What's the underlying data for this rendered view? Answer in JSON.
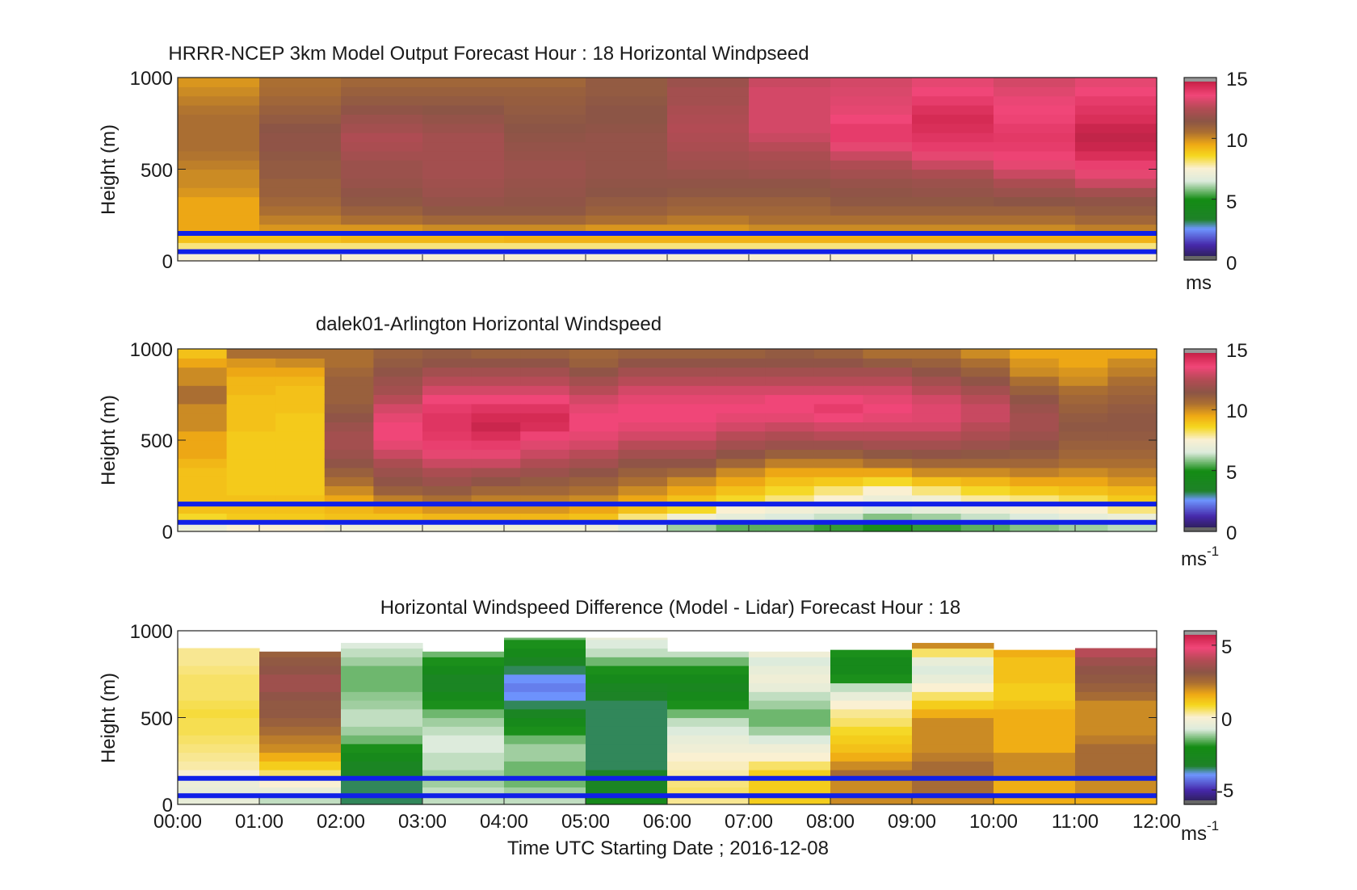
{
  "chart_data": [
    {
      "type": "heatmap",
      "title": "HRRR-NCEP 3km Model Output   Forecast Hour : 18 Horizontal Windpseed",
      "ylabel": "Height (m)",
      "ylim": [
        0,
        1000
      ],
      "yticks": [
        "0",
        "500",
        "1000"
      ],
      "xlim_hours": [
        0,
        12
      ],
      "colorbar": {
        "min": 0,
        "max": 15,
        "ticks": [
          "0",
          "5",
          "10",
          "15"
        ],
        "unit": "ms",
        "unit_sup": ""
      },
      "reference_lines_m": [
        150,
        50
      ],
      "heights_m": [
        25,
        75,
        125,
        175,
        225,
        275,
        325,
        375,
        425,
        475,
        525,
        575,
        625,
        675,
        725,
        775,
        825,
        875,
        925,
        975
      ],
      "columns": [
        [
          7.5,
          8.0,
          9.0,
          9.5,
          9.5,
          9.5,
          9.5,
          9.8,
          10.0,
          10.0,
          10.2,
          10.4,
          10.5,
          10.5,
          10.5,
          10.5,
          10.4,
          10.2,
          10.0,
          9.8
        ],
        [
          7.5,
          8.0,
          9.0,
          9.8,
          10.2,
          10.5,
          10.8,
          11.0,
          11.0,
          11.2,
          11.2,
          11.3,
          11.5,
          11.5,
          11.4,
          11.2,
          11.0,
          10.8,
          10.6,
          10.5
        ],
        [
          7.5,
          8.0,
          9.2,
          9.8,
          10.5,
          11.0,
          11.3,
          11.5,
          11.7,
          11.8,
          11.8,
          12.0,
          12.2,
          12.3,
          12.0,
          11.8,
          11.5,
          11.2,
          11.0,
          10.8
        ],
        [
          7.5,
          8.0,
          9.2,
          10.0,
          10.8,
          11.3,
          11.6,
          11.8,
          11.9,
          12.0,
          12.0,
          12.0,
          12.0,
          12.0,
          11.8,
          11.6,
          11.4,
          11.2,
          11.0,
          10.8
        ],
        [
          7.5,
          8.0,
          9.3,
          10.0,
          10.8,
          11.3,
          11.5,
          11.6,
          11.7,
          11.8,
          11.8,
          11.7,
          11.6,
          11.5,
          11.4,
          11.3,
          11.2,
          11.1,
          11.0,
          10.8
        ],
        [
          7.5,
          8.0,
          9.3,
          9.8,
          10.5,
          11.0,
          11.2,
          11.4,
          11.5,
          11.6,
          11.6,
          11.6,
          11.6,
          11.6,
          11.5,
          11.4,
          11.4,
          11.3,
          11.2,
          11.2
        ],
        [
          7.5,
          8.0,
          9.3,
          9.8,
          10.3,
          10.8,
          11.0,
          11.3,
          11.5,
          11.7,
          11.9,
          12.0,
          12.2,
          12.3,
          12.4,
          12.3,
          12.2,
          12.0,
          12.0,
          11.8
        ],
        [
          7.5,
          8.0,
          9.3,
          10.0,
          10.5,
          10.8,
          11.0,
          11.3,
          11.5,
          11.8,
          12.0,
          12.2,
          12.5,
          12.8,
          13.0,
          13.0,
          13.0,
          13.0,
          13.0,
          12.8
        ],
        [
          7.5,
          8.0,
          9.3,
          10.0,
          10.5,
          11.0,
          11.3,
          11.5,
          11.7,
          12.0,
          12.3,
          12.8,
          13.3,
          13.8,
          13.8,
          13.5,
          13.3,
          13.2,
          13.1,
          13.0
        ],
        [
          7.5,
          8.0,
          9.3,
          10.0,
          10.5,
          11.0,
          11.3,
          11.6,
          11.8,
          12.2,
          12.8,
          13.3,
          13.8,
          14.0,
          14.2,
          14.3,
          14.1,
          13.8,
          13.5,
          13.3
        ],
        [
          7.5,
          8.0,
          9.3,
          10.0,
          10.5,
          11.0,
          11.4,
          11.8,
          12.2,
          12.8,
          13.3,
          13.6,
          13.8,
          13.9,
          13.8,
          13.6,
          13.5,
          13.4,
          13.2,
          13.0
        ],
        [
          7.5,
          8.0,
          9.3,
          10.2,
          10.8,
          11.2,
          11.5,
          12.0,
          12.8,
          13.3,
          13.7,
          14.2,
          14.5,
          14.6,
          14.5,
          14.2,
          14.0,
          13.8,
          13.5,
          13.3
        ]
      ]
    },
    {
      "type": "heatmap",
      "title": "dalek01-Arlington  Horizontal Windspeed",
      "ylabel": "Height (m)",
      "ylim": [
        0,
        1000
      ],
      "yticks": [
        "0",
        "500",
        "1000"
      ],
      "xlim_hours": [
        0,
        12
      ],
      "colorbar": {
        "min": 0,
        "max": 15,
        "ticks": [
          "0",
          "5",
          "10",
          "15"
        ],
        "unit": "ms",
        "unit_sup": "-1"
      },
      "reference_lines_m": [
        150,
        50
      ],
      "heights_m": [
        25,
        75,
        125,
        175,
        225,
        275,
        325,
        375,
        425,
        475,
        525,
        575,
        625,
        675,
        725,
        775,
        825,
        875,
        925,
        975
      ],
      "columns": [
        [
          7.0,
          8.5,
          9.0,
          9.0,
          9.0,
          9.0,
          9.0,
          9.2,
          9.5,
          9.5,
          9.5,
          10.0,
          10.0,
          10.0,
          10.5,
          10.5,
          10.0,
          10.0,
          9.5,
          9.0
        ],
        [
          7.5,
          8.8,
          9.0,
          9.0,
          8.8,
          8.8,
          8.8,
          8.8,
          8.8,
          8.8,
          8.8,
          9.0,
          9.0,
          9.0,
          9.0,
          9.2,
          9.2,
          9.5,
          9.8,
          10.5
        ],
        [
          7.5,
          8.8,
          9.0,
          9.0,
          8.8,
          8.8,
          8.8,
          8.8,
          8.8,
          8.8,
          8.8,
          8.8,
          8.8,
          9.0,
          9.0,
          9.0,
          9.2,
          9.5,
          10.0,
          10.5
        ],
        [
          7.2,
          9.0,
          9.2,
          9.5,
          10.0,
          10.5,
          11.0,
          11.5,
          11.8,
          12.0,
          12.0,
          11.8,
          11.5,
          11.2,
          11.0,
          11.0,
          11.0,
          10.8,
          10.5,
          10.5
        ],
        [
          7.2,
          9.0,
          9.5,
          10.2,
          11.0,
          11.5,
          11.8,
          12.2,
          12.8,
          13.3,
          13.5,
          13.5,
          13.3,
          13.0,
          12.5,
          12.0,
          11.8,
          11.5,
          11.2,
          11.0
        ],
        [
          7.2,
          9.2,
          9.8,
          10.5,
          11.2,
          11.8,
          12.2,
          12.8,
          13.3,
          13.7,
          13.9,
          14.0,
          14.0,
          13.8,
          13.5,
          13.0,
          12.5,
          12.0,
          11.5,
          11.2
        ],
        [
          7.2,
          9.2,
          9.8,
          10.2,
          10.8,
          11.5,
          12.0,
          12.8,
          13.3,
          13.8,
          14.2,
          14.5,
          14.3,
          14.0,
          13.5,
          13.0,
          12.5,
          12.0,
          11.5,
          11.0
        ],
        [
          7.2,
          9.2,
          9.8,
          10.2,
          10.8,
          11.2,
          11.8,
          12.3,
          12.8,
          13.2,
          13.6,
          14.2,
          14.3,
          14.0,
          13.5,
          13.0,
          12.5,
          12.0,
          11.5,
          11.0
        ],
        [
          7.2,
          9.0,
          9.5,
          10.0,
          10.5,
          11.0,
          11.5,
          12.0,
          12.5,
          13.0,
          13.3,
          13.5,
          13.5,
          13.3,
          13.0,
          12.5,
          12.0,
          11.5,
          11.0,
          10.8
        ],
        [
          6.5,
          8.0,
          9.0,
          9.5,
          10.0,
          10.5,
          11.0,
          11.5,
          12.0,
          12.5,
          13.0,
          13.3,
          13.5,
          13.5,
          13.3,
          13.0,
          12.5,
          12.0,
          11.5,
          11.0
        ],
        [
          6.0,
          7.2,
          8.5,
          9.0,
          9.5,
          10.0,
          10.8,
          11.5,
          12.0,
          12.5,
          13.0,
          13.3,
          13.5,
          13.5,
          13.3,
          13.0,
          12.5,
          12.0,
          11.5,
          11.0
        ],
        [
          5.5,
          6.8,
          7.5,
          8.5,
          9.0,
          9.5,
          10.0,
          10.8,
          11.5,
          12.0,
          12.5,
          13.0,
          13.3,
          13.5,
          13.3,
          13.0,
          12.5,
          12.0,
          11.5,
          11.0
        ],
        [
          5.5,
          6.5,
          7.2,
          8.0,
          8.5,
          9.0,
          9.5,
          10.2,
          11.0,
          11.8,
          12.3,
          12.8,
          13.3,
          13.5,
          13.5,
          13.0,
          12.5,
          12.0,
          11.5,
          11.2
        ],
        [
          5.2,
          6.3,
          7.0,
          7.5,
          8.0,
          8.8,
          9.5,
          10.2,
          11.0,
          11.8,
          12.5,
          13.0,
          13.5,
          13.8,
          13.5,
          13.0,
          12.5,
          12.0,
          11.5,
          11.0
        ],
        [
          5.0,
          5.8,
          6.5,
          7.0,
          7.5,
          8.5,
          9.5,
          10.5,
          11.3,
          12.0,
          12.5,
          13.0,
          13.3,
          13.5,
          13.3,
          13.0,
          12.5,
          12.0,
          11.2,
          10.5
        ],
        [
          5.2,
          6.0,
          6.8,
          7.2,
          8.0,
          9.0,
          10.0,
          10.8,
          11.5,
          12.0,
          12.5,
          13.0,
          13.2,
          13.2,
          13.0,
          12.5,
          12.0,
          11.5,
          11.0,
          10.5
        ],
        [
          5.5,
          6.3,
          7.0,
          7.8,
          8.5,
          9.2,
          10.0,
          10.8,
          11.3,
          11.8,
          12.2,
          12.5,
          12.8,
          12.8,
          12.5,
          12.0,
          11.5,
          11.0,
          10.5,
          10.0
        ],
        [
          5.8,
          6.5,
          7.3,
          8.0,
          8.8,
          9.5,
          10.2,
          10.8,
          11.2,
          11.5,
          11.8,
          12.0,
          12.0,
          11.8,
          11.5,
          11.0,
          10.5,
          10.0,
          9.8,
          9.5
        ],
        [
          6.0,
          6.8,
          7.5,
          8.3,
          9.0,
          9.5,
          10.0,
          10.5,
          10.8,
          11.0,
          11.2,
          11.3,
          11.2,
          11.0,
          10.8,
          10.5,
          10.0,
          9.8,
          9.5,
          9.5
        ],
        [
          6.2,
          7.0,
          8.0,
          8.8,
          9.2,
          9.8,
          10.2,
          10.5,
          10.8,
          11.0,
          11.2,
          11.3,
          11.3,
          11.2,
          11.0,
          10.8,
          10.5,
          10.2,
          10.0,
          9.5
        ]
      ]
    },
    {
      "type": "heatmap",
      "title": "Horizontal Windspeed Difference (Model - Lidar) Forecast Hour : 18",
      "ylabel": "Height (m)",
      "xlabel": "Time UTC  Starting Date ; 2016-12-08",
      "ylim": [
        0,
        1000
      ],
      "yticks": [
        "0",
        "500",
        "1000"
      ],
      "xlim_hours": [
        0,
        12
      ],
      "xticks": [
        "00:00",
        "01:00",
        "02:00",
        "03:00",
        "04:00",
        "05:00",
        "06:00",
        "07:00",
        "08:00",
        "09:00",
        "10:00",
        "11:00",
        "12:00"
      ],
      "colorbar": {
        "min": -6,
        "max": 6,
        "ticks": [
          "-5",
          "0",
          "5"
        ],
        "unit": "ms",
        "unit_sup": "-1"
      },
      "reference_lines_m": [
        150,
        50
      ],
      "heights_m": [
        25,
        75,
        125,
        175,
        225,
        275,
        325,
        375,
        425,
        475,
        525,
        575,
        625,
        675,
        725,
        775,
        825,
        875,
        925,
        975
      ],
      "column_tops_m": [
        900,
        880,
        930,
        880,
        960,
        960,
        880,
        880,
        890,
        930,
        890,
        900
      ],
      "columns": [
        [
          -0.5,
          -0.5,
          -0.4,
          0.0,
          0.2,
          0.3,
          0.4,
          0.5,
          0.6,
          0.6,
          0.7,
          0.6,
          0.5,
          0.5,
          0.5,
          0.4,
          0.3,
          0.3,
          0.2,
          0.0
        ],
        [
          -1.0,
          -0.5,
          0.0,
          0.5,
          1.0,
          1.5,
          2.0,
          2.2,
          2.5,
          2.8,
          3.0,
          3.0,
          3.2,
          3.5,
          3.5,
          3.2,
          3.0,
          2.8,
          2.5,
          2.0
        ],
        [
          -3.5,
          -3.5,
          -3.5,
          -3.2,
          -3.0,
          -2.5,
          -2.0,
          -1.5,
          -1.2,
          -1.0,
          -1.0,
          -1.2,
          -1.3,
          -1.5,
          -1.5,
          -1.5,
          -1.2,
          -1.0,
          -0.8,
          -0.5
        ],
        [
          -1.0,
          -1.0,
          -1.2,
          -1.2,
          -1.0,
          -1.0,
          -0.8,
          -0.8,
          -1.0,
          -1.2,
          -1.5,
          -2.0,
          -2.5,
          -3.0,
          -3.0,
          -2.5,
          -2.0,
          -1.5,
          -1.0,
          -0.5
        ],
        [
          -1.0,
          -1.2,
          -1.5,
          -1.5,
          -1.5,
          -1.2,
          -1.2,
          -1.5,
          -2.0,
          -2.5,
          -3.0,
          -3.5,
          -4.0,
          -4.2,
          -4.0,
          -3.5,
          -3.0,
          -2.5,
          -2.0,
          -1.5
        ],
        [
          -2.5,
          -3.0,
          -3.0,
          -3.2,
          -3.5,
          -3.5,
          -3.5,
          -3.5,
          -3.5,
          -3.5,
          -3.5,
          -3.5,
          -3.2,
          -3.0,
          -2.5,
          -2.0,
          -1.5,
          -1.0,
          -0.8,
          -0.5
        ],
        [
          0.3,
          0.5,
          0.4,
          0.2,
          0.1,
          0.0,
          -0.3,
          -0.5,
          -0.8,
          -1.0,
          -1.5,
          -2.0,
          -2.5,
          -2.8,
          -2.5,
          -2.0,
          -1.5,
          -1.0,
          -0.5,
          0.0
        ],
        [
          1.0,
          1.0,
          1.0,
          1.0,
          0.5,
          0.0,
          -0.3,
          -0.8,
          -1.2,
          -1.5,
          -1.5,
          -1.2,
          -1.0,
          -0.5,
          -0.3,
          -0.5,
          -0.8,
          -0.3,
          0.0,
          0.3
        ],
        [
          2.0,
          2.0,
          2.0,
          2.5,
          2.0,
          1.5,
          1.2,
          1.0,
          0.8,
          0.5,
          0.3,
          0.0,
          -0.5,
          -1.0,
          -2.0,
          -2.5,
          -2.5,
          -2.0,
          -1.0,
          0.5
        ],
        [
          2.0,
          2.5,
          2.5,
          2.5,
          2.5,
          2.2,
          2.0,
          2.0,
          2.0,
          2.0,
          1.5,
          1.0,
          0.5,
          0.0,
          -0.5,
          -0.8,
          -0.5,
          0.5,
          2.0,
          2.8
        ],
        [
          1.5,
          1.5,
          1.5,
          2.0,
          2.0,
          2.0,
          1.5,
          1.5,
          1.5,
          1.5,
          1.5,
          1.2,
          1.0,
          1.0,
          1.2,
          1.2,
          1.2,
          1.5,
          2.0,
          3.0
        ],
        [
          1.5,
          2.0,
          2.0,
          2.5,
          2.5,
          2.5,
          2.5,
          2.2,
          2.0,
          2.0,
          2.0,
          2.0,
          2.5,
          2.8,
          3.0,
          3.2,
          3.5,
          4.0,
          4.5,
          4.8
        ]
      ]
    }
  ]
}
